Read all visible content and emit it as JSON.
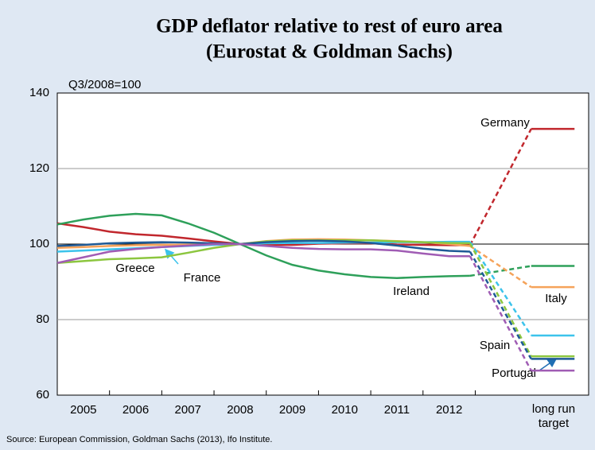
{
  "chart_data": {
    "type": "line",
    "title": [
      "GDP deflator relative to rest of euro area",
      "(Eurostat & Goldman Sachs)"
    ],
    "y_label": "Q3/2008=100",
    "source": "Source: European Commission, Goldman Sachs (2013), Ifo Institute.",
    "x": [
      2004.5,
      2005,
      2005.5,
      2006,
      2006.5,
      2007,
      2007.5,
      2008,
      2008.5,
      2009,
      2009.5,
      2010,
      2010.5,
      2011,
      2011.5,
      2012,
      2012.4,
      2013.57,
      2014.4
    ],
    "xlim": [
      2004.5,
      2014.67
    ],
    "xticks": [
      2005,
      2006,
      2007,
      2008,
      2009,
      2010,
      2011,
      2012,
      {
        "value": 2014,
        "label": "long run target"
      }
    ],
    "ylim": [
      60,
      140
    ],
    "yticks": [
      60,
      80,
      100,
      120,
      140
    ],
    "grid": true,
    "reference_line": 100,
    "series": [
      {
        "name": "Germany",
        "color": "#c1272d",
        "values": [
          105.5,
          104.5,
          103.3,
          102.6,
          102.2,
          101.5,
          100.7,
          100,
          99.8,
          99.8,
          100.1,
          100.2,
          100.2,
          99.9,
          99.8,
          99.7,
          99.7,
          130.5,
          130.5
        ]
      },
      {
        "name": "Ireland",
        "color": "#2ea05a",
        "values": [
          105.2,
          106.5,
          107.5,
          108,
          107.6,
          105.5,
          103,
          100,
          97,
          94.5,
          93,
          92,
          91.3,
          91,
          91.3,
          91.5,
          91.6,
          94.2,
          94.2
        ]
      },
      {
        "name": "Italy",
        "color": "#f5a35a",
        "values": [
          99,
          99.2,
          99.5,
          99.7,
          99.8,
          99.9,
          100,
          100,
          100.8,
          101.2,
          101.3,
          101.2,
          101,
          100.8,
          100.5,
          100,
          99.5,
          88.6,
          88.6
        ]
      },
      {
        "name": "France",
        "color": "#3cc3eb",
        "values": [
          98,
          98.3,
          98.6,
          98.9,
          99.2,
          99.5,
          99.8,
          100,
          100.2,
          100.3,
          100.3,
          100.4,
          100.4,
          100.5,
          100.5,
          100.6,
          100.6,
          75.8,
          75.8
        ]
      },
      {
        "name": "Greece",
        "color": "#8cc63f",
        "values": [
          95,
          95.5,
          96,
          96.2,
          96.5,
          97.7,
          99,
          100,
          100.7,
          101,
          101,
          101,
          101,
          100.7,
          100.5,
          100.3,
          100.2,
          70.3,
          70.3
        ]
      },
      {
        "name": "Portugal",
        "color": "#1f5a96",
        "values": [
          99.5,
          99.8,
          100.2,
          100.4,
          100.5,
          100.4,
          100.2,
          100,
          100.5,
          100.8,
          100.9,
          100.7,
          100.3,
          99.6,
          98.8,
          98.2,
          98,
          69.6,
          69.6
        ]
      },
      {
        "name": "Spain",
        "color": "#a05cb4",
        "values": [
          95,
          96.5,
          98,
          98.7,
          99.2,
          99.6,
          100,
          100,
          99.5,
          99,
          98.7,
          98.6,
          98.6,
          98.3,
          97.5,
          96.8,
          96.8,
          66.5,
          66.5
        ]
      }
    ]
  }
}
